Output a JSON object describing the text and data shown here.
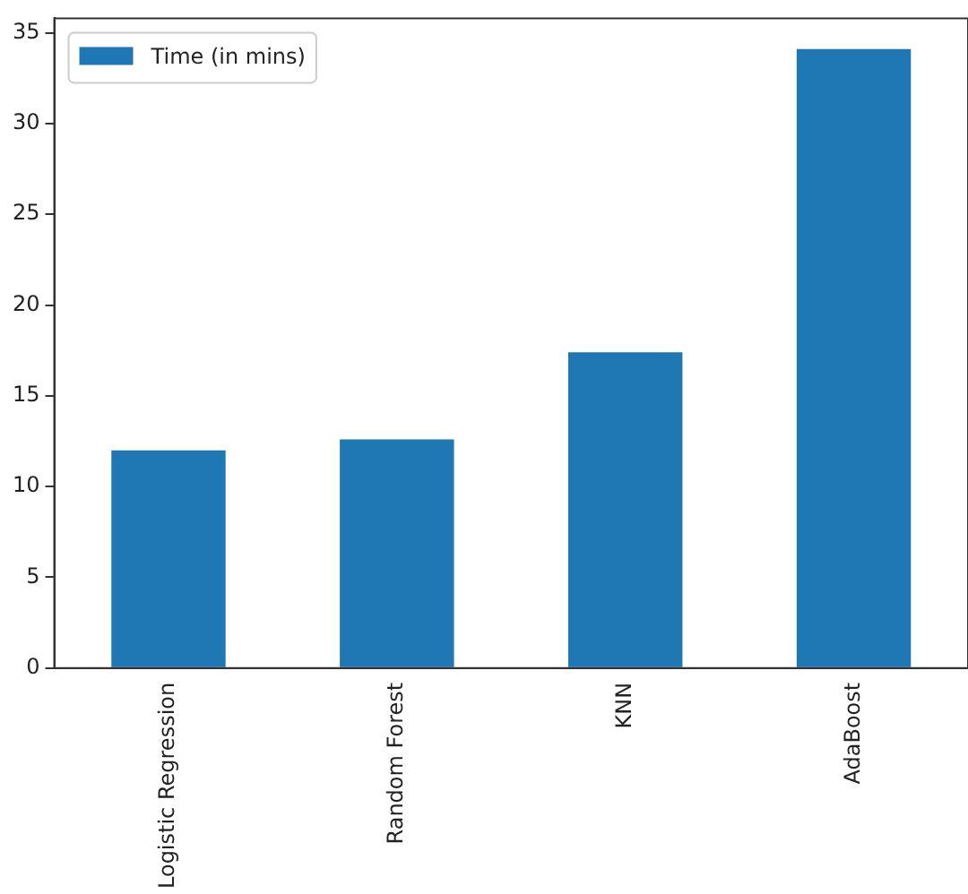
{
  "chart_data": {
    "type": "bar",
    "categories": [
      "Logistic Regression",
      "Random Forest",
      "KNN",
      "AdaBoost"
    ],
    "series": [
      {
        "name": "Time (in mins)",
        "color": "#1f77b4",
        "values": [
          12.0,
          12.6,
          17.4,
          34.1
        ]
      }
    ],
    "ylim": [
      0,
      35.8
    ],
    "yticks": [
      0,
      5,
      10,
      15,
      20,
      25,
      30,
      35
    ],
    "grid": false,
    "legend": "top left"
  }
}
